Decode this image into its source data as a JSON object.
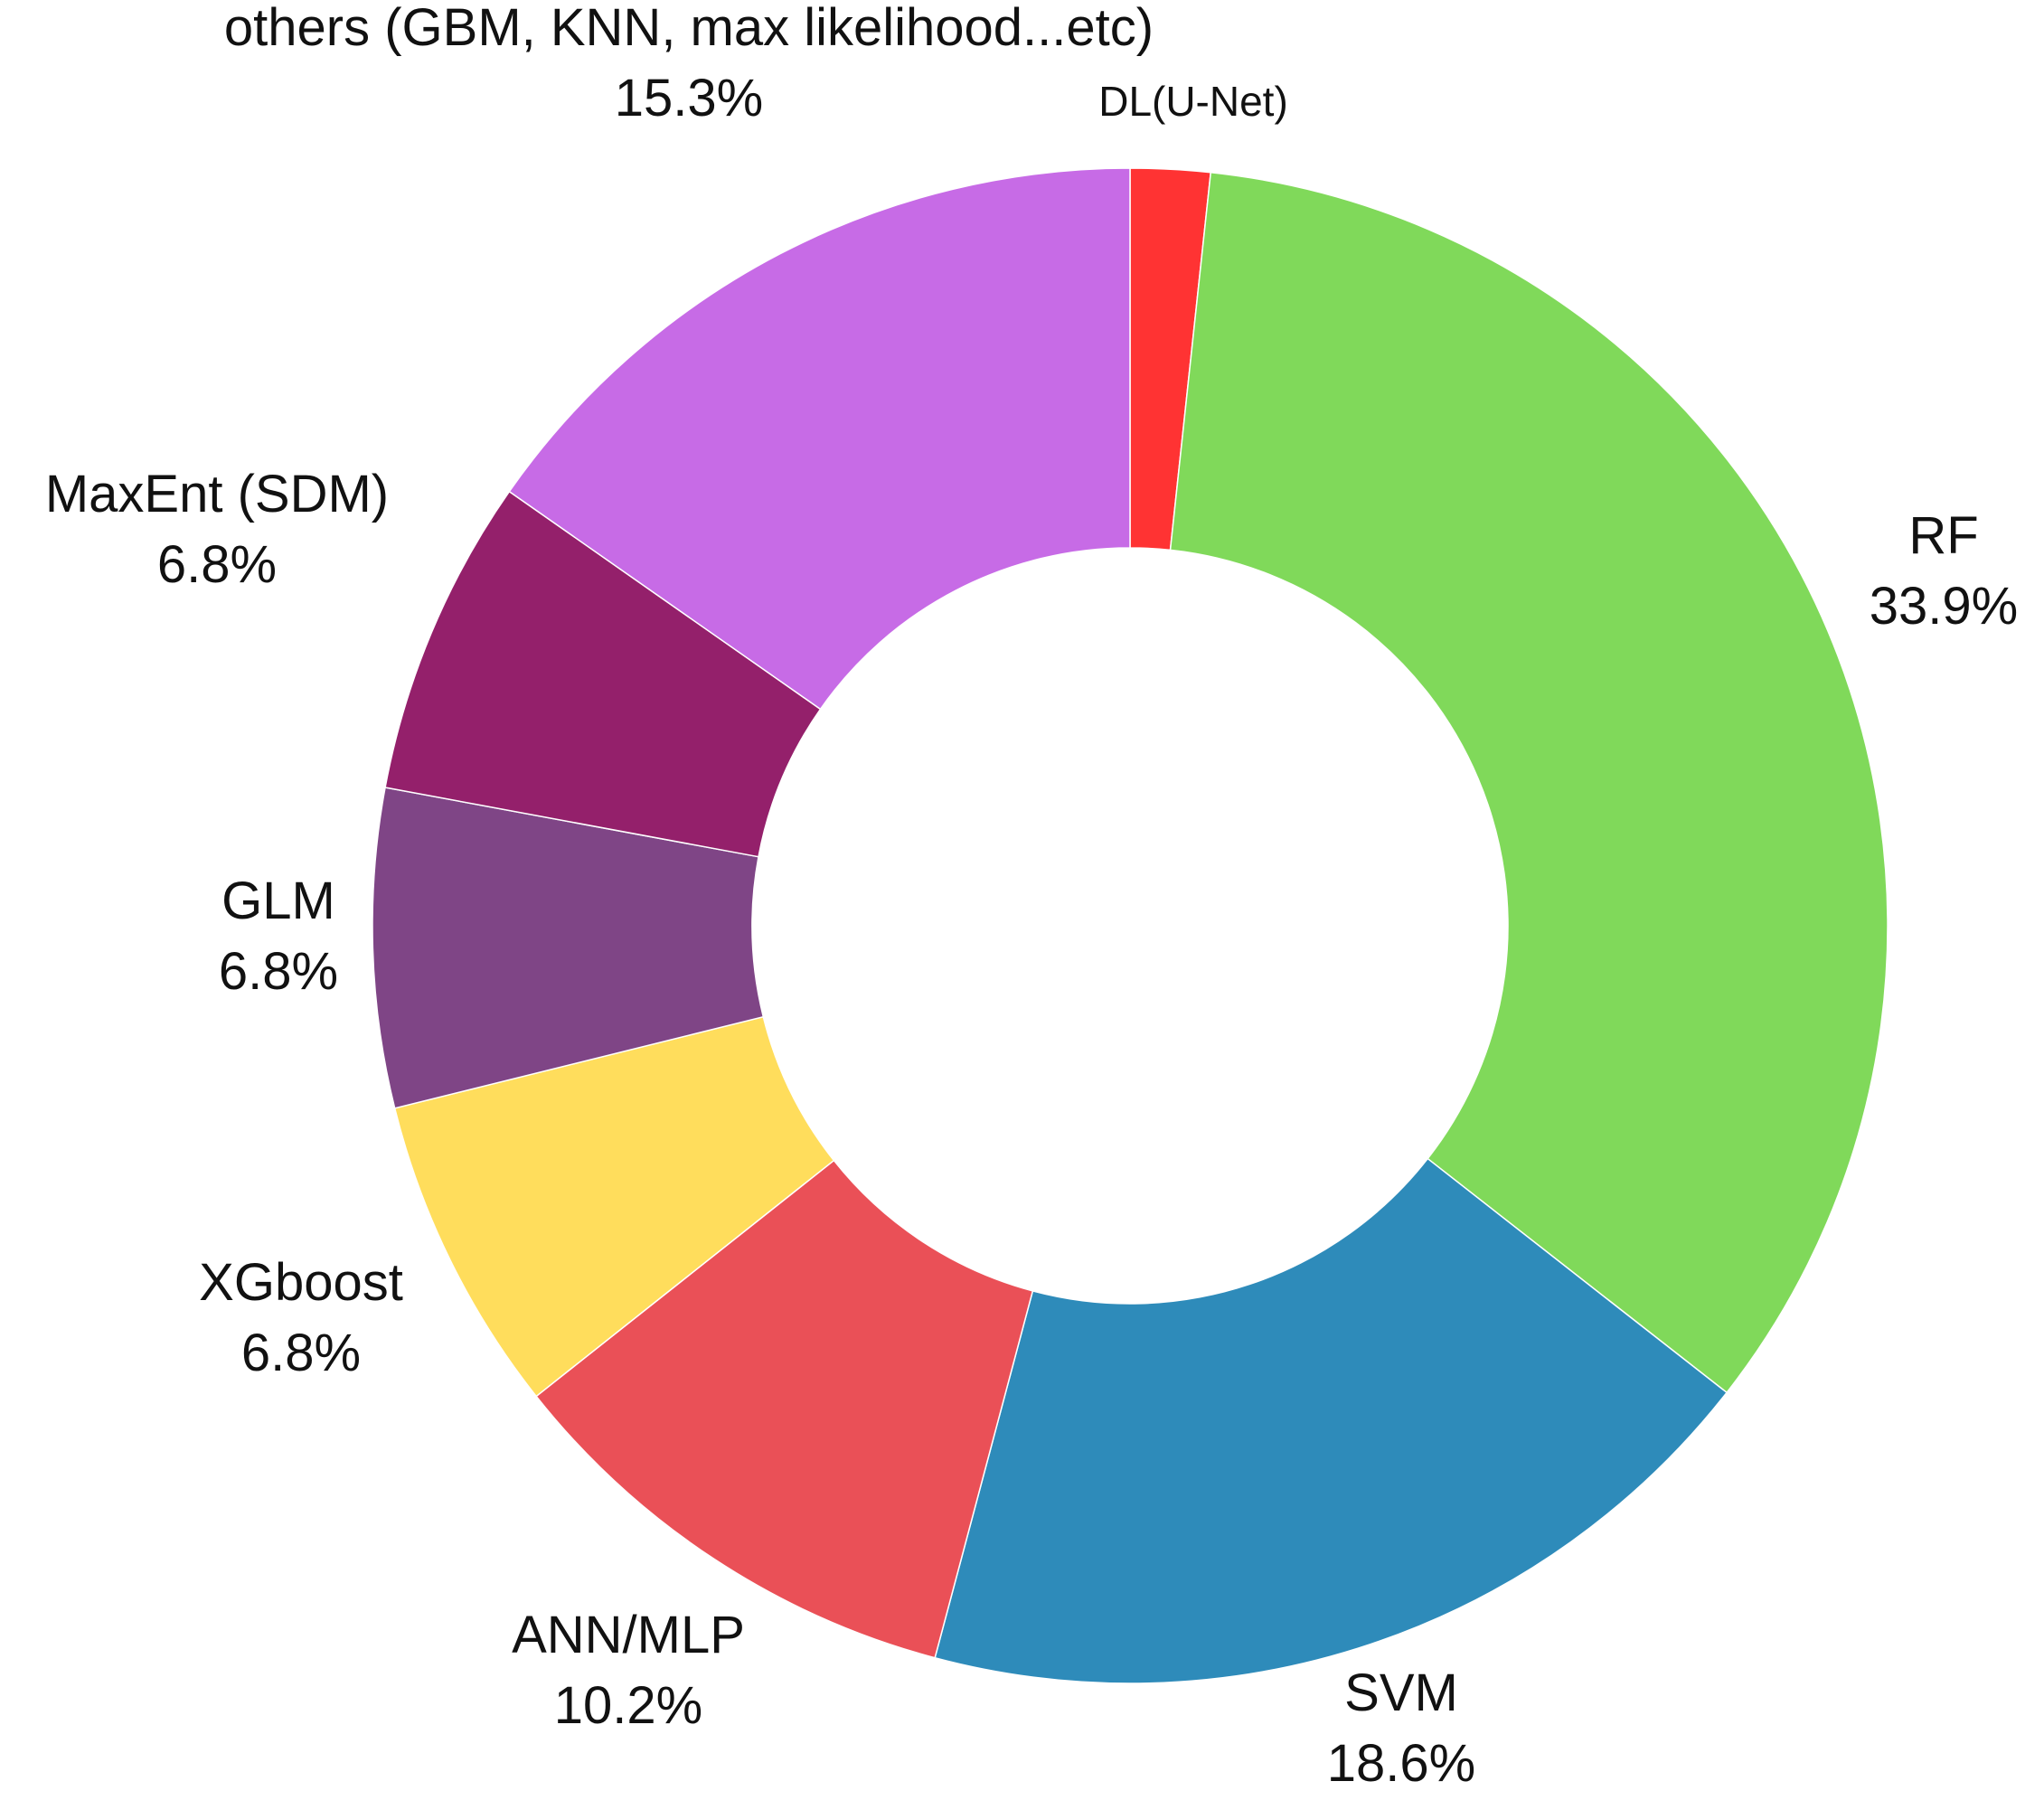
{
  "chart_data": {
    "type": "pie",
    "donut": true,
    "start_angle_deg": 0,
    "direction": "clockwise",
    "slices": [
      {
        "label": "DL(U-Net)",
        "pct_label": "",
        "value": 1.7,
        "color": "#FF3333"
      },
      {
        "label": "RF",
        "pct_label": "33.9%",
        "value": 33.9,
        "color": "#80D95A"
      },
      {
        "label": "SVM",
        "pct_label": "18.6%",
        "value": 18.6,
        "color": "#2E8BBA"
      },
      {
        "label": "ANN/MLP",
        "pct_label": "10.2%",
        "value": 10.2,
        "color": "#EA5057"
      },
      {
        "label": "XGboost",
        "pct_label": "6.8%",
        "value": 6.8,
        "color": "#FFDD5C"
      },
      {
        "label": "GLM",
        "pct_label": "6.8%",
        "value": 6.8,
        "color": "#7F4586"
      },
      {
        "label": "MaxEnt (SDM)",
        "pct_label": "6.8%",
        "value": 6.8,
        "color": "#94206B"
      },
      {
        "label": "others (GBM, KNN, max likelihood...etc)",
        "pct_label": "15.3%",
        "value": 15.3,
        "color": "#C76BE6"
      }
    ]
  }
}
